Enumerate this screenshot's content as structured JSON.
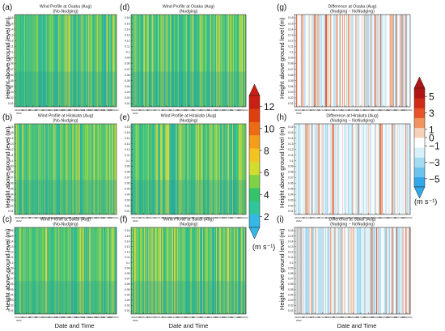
{
  "ytick_labels": [
    "0.01",
    "0.02",
    "0.03",
    "0.04",
    "0.05",
    "0.06",
    "0.07",
    "0.08",
    "0.09",
    "0.1",
    "0.11",
    "0.12",
    "0.13",
    "0.14",
    "0.15",
    "0.16"
  ],
  "ylabel": "Height above ground level (m)",
  "xlabel": "Date and Time",
  "xtick_first": [
    "0900",
    "2022"
  ],
  "xtick_labels": [
    "1AUG",
    "3AUG",
    "5AUG",
    "7AUG",
    "9AUG",
    "11AUG",
    "13AUG",
    "15AUG",
    "17AUG",
    "19AUG",
    "21AUG",
    "23AUG",
    "25AUG",
    "27AUG",
    "29AUG"
  ],
  "colorbar_speed": {
    "ticks": [
      2,
      4,
      6,
      8,
      10,
      12
    ],
    "unit": "(m s⁻¹)",
    "colors": [
      "#35b8e6",
      "#2fc69b",
      "#34c56a",
      "#7ed344",
      "#d2dc2c",
      "#f3c322",
      "#f49d1a",
      "#ec6b14",
      "#dd3f0f",
      "#c91f15"
    ]
  },
  "colorbar_diff": {
    "ticks": [
      -5,
      -3,
      -1,
      0,
      1,
      3,
      5
    ],
    "unit": "(m s⁻¹)",
    "colors": [
      "#33a8e8",
      "#6cc3ee",
      "#a4daf2",
      "#d8f0f8",
      "#ffffff",
      "#f7d0ba",
      "#f0955f",
      "#e6522a",
      "#cf2b18",
      "#b11514"
    ]
  },
  "panels": [
    {
      "letter": "(a)",
      "title": "Wind Profile at Osaka (Aug)",
      "subtitle": "(No-Nudging)",
      "type": "speed"
    },
    {
      "letter": "(b)",
      "title": "Wind Profile at Hirakata (Aug)",
      "subtitle": "(No-Nudging)",
      "type": "speed"
    },
    {
      "letter": "(c)",
      "title": "Wind Profile at Sakai (Aug)",
      "subtitle": "(No-Nudging)",
      "type": "speed"
    },
    {
      "letter": "(d)",
      "title": "Wind Profile at Osaka (Aug)",
      "subtitle": "(Nudging)",
      "type": "speed"
    },
    {
      "letter": "(e)",
      "title": "Wind Profile at Hirakata (Aug)",
      "subtitle": "(Nudging)",
      "type": "speed"
    },
    {
      "letter": "(f)",
      "title": "Wind Profile at Sakai (Aug)",
      "subtitle": "(Nudging)",
      "type": "speed"
    },
    {
      "letter": "(g)",
      "title": "Difference at Osaka (Aug)",
      "subtitle": "(Nudging − NoNudging)",
      "type": "diff"
    },
    {
      "letter": "(h)",
      "title": "Difference at Hirakata (Aug)",
      "subtitle": "(Nudging − NoNudging)",
      "type": "diff"
    },
    {
      "letter": "(i)",
      "title": "Difference at Sakai (Aug)",
      "subtitle": "(Nudging − NoNudging)",
      "type": "diff"
    }
  ],
  "chart_data": {
    "type": "heatmap",
    "x": "Date and Time",
    "y": "Height above ground level (m)",
    "yrange": [
      0.01,
      0.16
    ],
    "speed_range": [
      1,
      13
    ],
    "diff_range": [
      -6,
      6
    ],
    "panels": [
      "(a)",
      "(b)",
      "(c)",
      "(d)",
      "(e)",
      "(f)",
      "(g)",
      "(h)",
      "(i)"
    ]
  }
}
